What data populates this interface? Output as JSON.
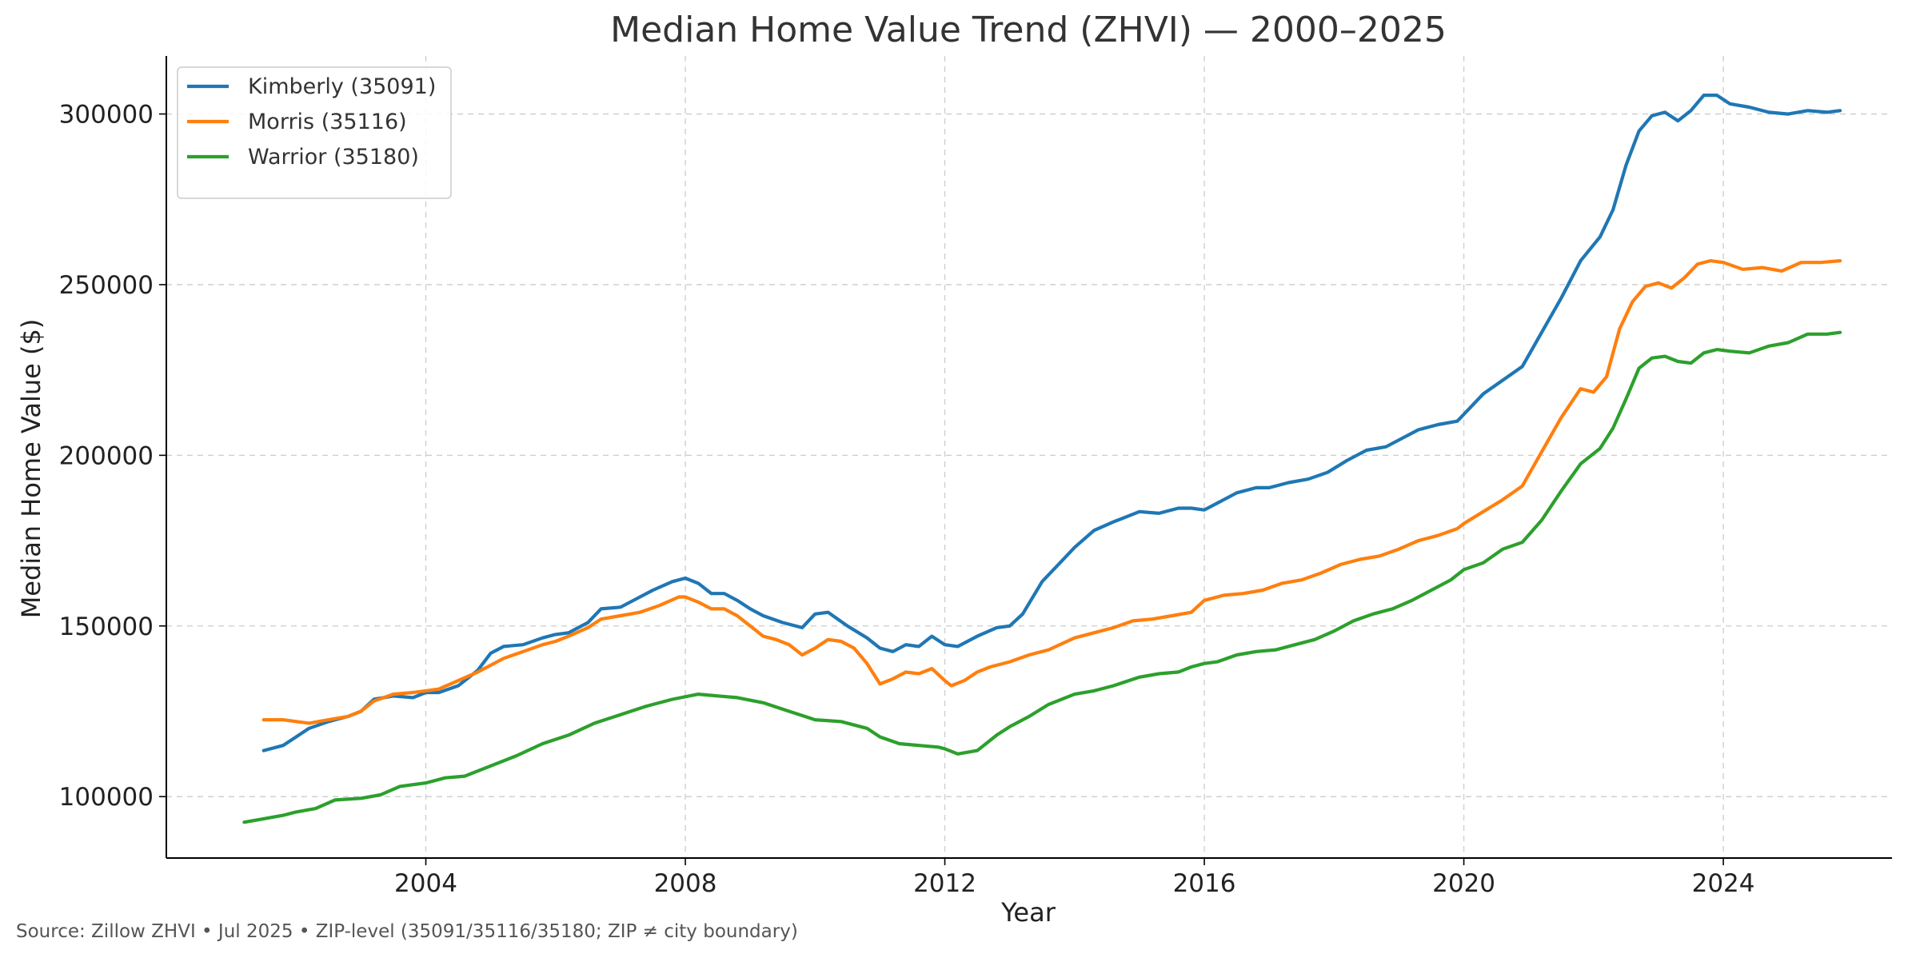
{
  "chart_data": {
    "type": "line",
    "title": "Median Home Value Trend (ZHVI) — 2000–2025",
    "xlabel": "Year",
    "ylabel": "Median Home Value ($)",
    "xlim": [
      2000.0,
      2026.6
    ],
    "ylim": [
      82000,
      317000
    ],
    "x_ticks": [
      2004,
      2008,
      2012,
      2016,
      2020,
      2024
    ],
    "x_tick_labels": [
      "2004",
      "2008",
      "2012",
      "2016",
      "2020",
      "2024"
    ],
    "y_ticks": [
      100000,
      150000,
      200000,
      250000,
      300000
    ],
    "y_tick_labels": [
      "100000",
      "150000",
      "200000",
      "250000",
      "300000"
    ],
    "grid": true,
    "legend_position": "upper-left",
    "series": [
      {
        "name": "Kimberly (35091)",
        "color": "#1f77b4",
        "points": [
          [
            2001.5,
            113500
          ],
          [
            2001.8,
            115000
          ],
          [
            2002.0,
            117500
          ],
          [
            2002.2,
            120000
          ],
          [
            2002.5,
            122000
          ],
          [
            2002.8,
            123500
          ],
          [
            2003.0,
            125000
          ],
          [
            2003.2,
            128500
          ],
          [
            2003.5,
            129500
          ],
          [
            2003.8,
            129000
          ],
          [
            2004.0,
            130500
          ],
          [
            2004.2,
            130500
          ],
          [
            2004.5,
            132500
          ],
          [
            2004.8,
            137000
          ],
          [
            2005.0,
            142000
          ],
          [
            2005.2,
            144000
          ],
          [
            2005.5,
            144500
          ],
          [
            2005.8,
            146500
          ],
          [
            2006.0,
            147500
          ],
          [
            2006.2,
            148000
          ],
          [
            2006.5,
            151000
          ],
          [
            2006.7,
            155000
          ],
          [
            2007.0,
            155500
          ],
          [
            2007.2,
            157500
          ],
          [
            2007.5,
            160500
          ],
          [
            2007.8,
            163000
          ],
          [
            2008.0,
            164000
          ],
          [
            2008.2,
            162500
          ],
          [
            2008.4,
            159500
          ],
          [
            2008.6,
            159500
          ],
          [
            2008.8,
            157500
          ],
          [
            2009.0,
            155000
          ],
          [
            2009.2,
            153000
          ],
          [
            2009.5,
            151000
          ],
          [
            2009.8,
            149500
          ],
          [
            2010.0,
            153500
          ],
          [
            2010.2,
            154000
          ],
          [
            2010.5,
            150000
          ],
          [
            2010.8,
            146500
          ],
          [
            2011.0,
            143500
          ],
          [
            2011.2,
            142500
          ],
          [
            2011.4,
            144500
          ],
          [
            2011.6,
            144000
          ],
          [
            2011.8,
            147000
          ],
          [
            2012.0,
            144500
          ],
          [
            2012.2,
            144000
          ],
          [
            2012.5,
            147000
          ],
          [
            2012.8,
            149500
          ],
          [
            2013.0,
            150000
          ],
          [
            2013.2,
            153500
          ],
          [
            2013.5,
            163000
          ],
          [
            2013.8,
            169000
          ],
          [
            2014.0,
            173000
          ],
          [
            2014.3,
            178000
          ],
          [
            2014.6,
            180500
          ],
          [
            2015.0,
            183500
          ],
          [
            2015.3,
            183000
          ],
          [
            2015.6,
            184500
          ],
          [
            2015.8,
            184500
          ],
          [
            2016.0,
            184000
          ],
          [
            2016.2,
            186000
          ],
          [
            2016.5,
            189000
          ],
          [
            2016.8,
            190500
          ],
          [
            2017.0,
            190500
          ],
          [
            2017.3,
            192000
          ],
          [
            2017.6,
            193000
          ],
          [
            2017.9,
            195000
          ],
          [
            2018.2,
            198500
          ],
          [
            2018.5,
            201500
          ],
          [
            2018.8,
            202500
          ],
          [
            2019.0,
            204500
          ],
          [
            2019.3,
            207500
          ],
          [
            2019.6,
            209000
          ],
          [
            2019.9,
            210000
          ],
          [
            2020.0,
            212000
          ],
          [
            2020.3,
            218000
          ],
          [
            2020.6,
            222000
          ],
          [
            2020.9,
            226000
          ],
          [
            2021.2,
            236000
          ],
          [
            2021.5,
            246000
          ],
          [
            2021.8,
            257000
          ],
          [
            2022.1,
            264000
          ],
          [
            2022.3,
            272000
          ],
          [
            2022.5,
            285000
          ],
          [
            2022.7,
            295000
          ],
          [
            2022.9,
            299500
          ],
          [
            2023.1,
            300500
          ],
          [
            2023.3,
            298000
          ],
          [
            2023.5,
            301000
          ],
          [
            2023.7,
            305500
          ],
          [
            2023.9,
            305500
          ],
          [
            2024.1,
            303000
          ],
          [
            2024.4,
            302000
          ],
          [
            2024.7,
            300500
          ],
          [
            2025.0,
            300000
          ],
          [
            2025.3,
            301000
          ],
          [
            2025.6,
            300500
          ],
          [
            2025.8,
            301000
          ]
        ]
      },
      {
        "name": "Morris (35116)",
        "color": "#ff7f0e",
        "points": [
          [
            2001.5,
            122500
          ],
          [
            2001.8,
            122500
          ],
          [
            2002.0,
            122000
          ],
          [
            2002.2,
            121500
          ],
          [
            2002.5,
            122500
          ],
          [
            2002.8,
            123500
          ],
          [
            2003.0,
            125000
          ],
          [
            2003.2,
            128000
          ],
          [
            2003.5,
            130000
          ],
          [
            2003.8,
            130500
          ],
          [
            2004.0,
            131000
          ],
          [
            2004.2,
            131500
          ],
          [
            2004.5,
            134000
          ],
          [
            2004.8,
            136500
          ],
          [
            2005.0,
            138500
          ],
          [
            2005.2,
            140500
          ],
          [
            2005.5,
            142500
          ],
          [
            2005.8,
            144500
          ],
          [
            2006.0,
            145500
          ],
          [
            2006.2,
            147000
          ],
          [
            2006.5,
            149500
          ],
          [
            2006.7,
            152000
          ],
          [
            2007.0,
            153000
          ],
          [
            2007.3,
            154000
          ],
          [
            2007.6,
            156000
          ],
          [
            2007.9,
            158500
          ],
          [
            2008.0,
            158500
          ],
          [
            2008.2,
            157000
          ],
          [
            2008.4,
            155000
          ],
          [
            2008.6,
            155000
          ],
          [
            2008.8,
            153000
          ],
          [
            2009.0,
            150000
          ],
          [
            2009.2,
            147000
          ],
          [
            2009.4,
            146000
          ],
          [
            2009.6,
            144500
          ],
          [
            2009.8,
            141500
          ],
          [
            2010.0,
            143500
          ],
          [
            2010.2,
            146000
          ],
          [
            2010.4,
            145500
          ],
          [
            2010.6,
            143500
          ],
          [
            2010.8,
            139000
          ],
          [
            2011.0,
            133000
          ],
          [
            2011.2,
            134500
          ],
          [
            2011.4,
            136500
          ],
          [
            2011.6,
            136000
          ],
          [
            2011.8,
            137500
          ],
          [
            2012.0,
            134000
          ],
          [
            2012.1,
            132500
          ],
          [
            2012.3,
            134000
          ],
          [
            2012.5,
            136500
          ],
          [
            2012.7,
            138000
          ],
          [
            2013.0,
            139500
          ],
          [
            2013.3,
            141500
          ],
          [
            2013.6,
            143000
          ],
          [
            2014.0,
            146500
          ],
          [
            2014.3,
            148000
          ],
          [
            2014.6,
            149500
          ],
          [
            2014.9,
            151500
          ],
          [
            2015.2,
            152000
          ],
          [
            2015.5,
            153000
          ],
          [
            2015.8,
            154000
          ],
          [
            2016.0,
            157500
          ],
          [
            2016.3,
            159000
          ],
          [
            2016.6,
            159500
          ],
          [
            2016.9,
            160500
          ],
          [
            2017.2,
            162500
          ],
          [
            2017.5,
            163500
          ],
          [
            2017.8,
            165500
          ],
          [
            2018.1,
            168000
          ],
          [
            2018.4,
            169500
          ],
          [
            2018.7,
            170500
          ],
          [
            2019.0,
            172500
          ],
          [
            2019.3,
            175000
          ],
          [
            2019.6,
            176500
          ],
          [
            2019.9,
            178500
          ],
          [
            2020.0,
            180000
          ],
          [
            2020.3,
            183500
          ],
          [
            2020.6,
            187000
          ],
          [
            2020.9,
            191000
          ],
          [
            2021.2,
            201000
          ],
          [
            2021.5,
            211000
          ],
          [
            2021.8,
            219500
          ],
          [
            2022.0,
            218500
          ],
          [
            2022.2,
            223000
          ],
          [
            2022.4,
            237000
          ],
          [
            2022.6,
            245000
          ],
          [
            2022.8,
            249500
          ],
          [
            2023.0,
            250500
          ],
          [
            2023.2,
            249000
          ],
          [
            2023.4,
            252000
          ],
          [
            2023.6,
            256000
          ],
          [
            2023.8,
            257000
          ],
          [
            2024.0,
            256500
          ],
          [
            2024.3,
            254500
          ],
          [
            2024.6,
            255000
          ],
          [
            2024.9,
            254000
          ],
          [
            2025.2,
            256500
          ],
          [
            2025.5,
            256500
          ],
          [
            2025.8,
            257000
          ]
        ]
      },
      {
        "name": "Warrior (35180)",
        "color": "#2ca02c",
        "points": [
          [
            2001.2,
            92500
          ],
          [
            2001.5,
            93500
          ],
          [
            2001.8,
            94500
          ],
          [
            2002.0,
            95500
          ],
          [
            2002.3,
            96500
          ],
          [
            2002.6,
            99000
          ],
          [
            2003.0,
            99500
          ],
          [
            2003.3,
            100500
          ],
          [
            2003.6,
            103000
          ],
          [
            2004.0,
            104000
          ],
          [
            2004.3,
            105500
          ],
          [
            2004.6,
            106000
          ],
          [
            2005.0,
            109000
          ],
          [
            2005.4,
            112000
          ],
          [
            2005.8,
            115500
          ],
          [
            2006.2,
            118000
          ],
          [
            2006.6,
            121500
          ],
          [
            2007.0,
            124000
          ],
          [
            2007.4,
            126500
          ],
          [
            2007.8,
            128500
          ],
          [
            2008.2,
            130000
          ],
          [
            2008.5,
            129500
          ],
          [
            2008.8,
            129000
          ],
          [
            2009.2,
            127500
          ],
          [
            2009.6,
            125000
          ],
          [
            2010.0,
            122500
          ],
          [
            2010.4,
            122000
          ],
          [
            2010.8,
            120000
          ],
          [
            2011.0,
            117500
          ],
          [
            2011.3,
            115500
          ],
          [
            2011.6,
            115000
          ],
          [
            2011.9,
            114500
          ],
          [
            2012.0,
            114000
          ],
          [
            2012.2,
            112500
          ],
          [
            2012.5,
            113500
          ],
          [
            2012.8,
            118000
          ],
          [
            2013.0,
            120500
          ],
          [
            2013.3,
            123500
          ],
          [
            2013.6,
            127000
          ],
          [
            2014.0,
            130000
          ],
          [
            2014.3,
            131000
          ],
          [
            2014.6,
            132500
          ],
          [
            2015.0,
            135000
          ],
          [
            2015.3,
            136000
          ],
          [
            2015.6,
            136500
          ],
          [
            2015.8,
            138000
          ],
          [
            2016.0,
            139000
          ],
          [
            2016.2,
            139500
          ],
          [
            2016.5,
            141500
          ],
          [
            2016.8,
            142500
          ],
          [
            2017.1,
            143000
          ],
          [
            2017.4,
            144500
          ],
          [
            2017.7,
            146000
          ],
          [
            2018.0,
            148500
          ],
          [
            2018.3,
            151500
          ],
          [
            2018.6,
            153500
          ],
          [
            2018.9,
            155000
          ],
          [
            2019.2,
            157500
          ],
          [
            2019.5,
            160500
          ],
          [
            2019.8,
            163500
          ],
          [
            2020.0,
            166500
          ],
          [
            2020.3,
            168500
          ],
          [
            2020.6,
            172500
          ],
          [
            2020.9,
            174500
          ],
          [
            2021.2,
            181000
          ],
          [
            2021.5,
            189500
          ],
          [
            2021.8,
            197500
          ],
          [
            2022.1,
            202000
          ],
          [
            2022.3,
            208000
          ],
          [
            2022.5,
            216500
          ],
          [
            2022.7,
            225500
          ],
          [
            2022.9,
            228500
          ],
          [
            2023.1,
            229000
          ],
          [
            2023.3,
            227500
          ],
          [
            2023.5,
            227000
          ],
          [
            2023.7,
            230000
          ],
          [
            2023.9,
            231000
          ],
          [
            2024.1,
            230500
          ],
          [
            2024.4,
            230000
          ],
          [
            2024.7,
            232000
          ],
          [
            2025.0,
            233000
          ],
          [
            2025.3,
            235500
          ],
          [
            2025.6,
            235500
          ],
          [
            2025.8,
            236000
          ]
        ]
      }
    ],
    "source_note": "Source: Zillow ZHVI • Jul 2025 • ZIP-level (35091/35116/35180; ZIP ≠ city boundary)"
  }
}
